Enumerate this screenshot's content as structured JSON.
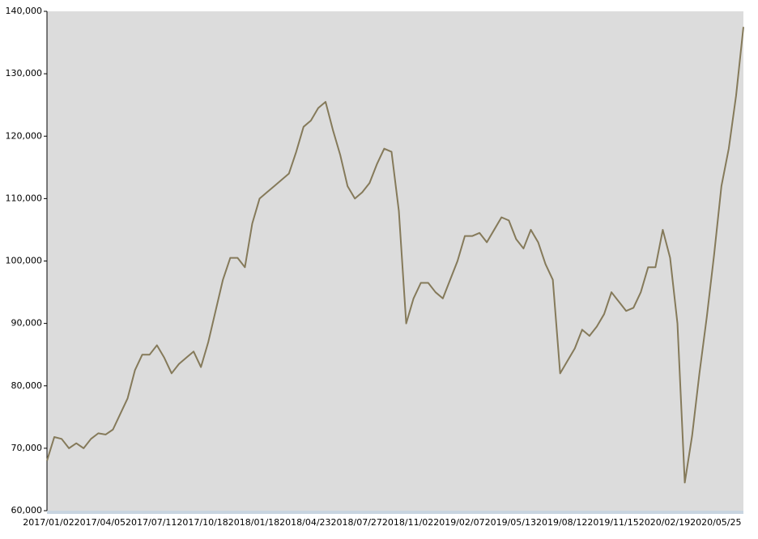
{
  "chart_data": {
    "type": "line",
    "categories": [
      "2017/01/02",
      null,
      null,
      null,
      null,
      null,
      null,
      "2017/04/05",
      null,
      null,
      null,
      null,
      null,
      null,
      "2017/07/11",
      null,
      null,
      null,
      null,
      null,
      null,
      "2017/10/18",
      null,
      null,
      null,
      null,
      null,
      null,
      "2018/01/18",
      null,
      null,
      null,
      null,
      null,
      null,
      "2018/04/23",
      null,
      null,
      null,
      null,
      null,
      null,
      "2018/07/27",
      null,
      null,
      null,
      null,
      null,
      null,
      "2018/11/02",
      null,
      null,
      null,
      null,
      null,
      null,
      "2019/02/07",
      null,
      null,
      null,
      null,
      null,
      null,
      "2019/05/13",
      null,
      null,
      null,
      null,
      null,
      null,
      "2019/08/12",
      null,
      null,
      null,
      null,
      null,
      null,
      "2019/11/15",
      null,
      null,
      null,
      null,
      null,
      null,
      "2020/02/19",
      null,
      null,
      null,
      null,
      null,
      null,
      "2020/05/25",
      null,
      null,
      null,
      null
    ],
    "values": [
      68000,
      71800,
      71500,
      70000,
      70800,
      70000,
      71500,
      72400,
      72200,
      73000,
      75500,
      78000,
      82500,
      85000,
      85000,
      86500,
      84500,
      82000,
      83500,
      84500,
      85500,
      83000,
      87000,
      92000,
      97000,
      100500,
      100500,
      99000,
      106000,
      110000,
      111000,
      112000,
      113000,
      114000,
      117500,
      121500,
      122500,
      124500,
      125500,
      121000,
      117000,
      112000,
      110000,
      111000,
      112500,
      115500,
      118000,
      117500,
      108000,
      90000,
      94000,
      96500,
      96500,
      95000,
      94000,
      97000,
      100000,
      104000,
      104000,
      104500,
      103000,
      105000,
      107000,
      106500,
      103500,
      102000,
      105000,
      103000,
      99500,
      97000,
      82000,
      84000,
      86000,
      89000,
      88000,
      89500,
      91500,
      95000,
      93500,
      92000,
      92500,
      95000,
      99000,
      99000,
      105000,
      100500,
      90000,
      64500,
      72000,
      82000,
      91000,
      101000,
      112000,
      118000,
      126500,
      137500
    ],
    "color": "#857a5a",
    "ylim": [
      60000,
      140000
    ],
    "yticks": [
      {
        "value": 60000,
        "label": "60,000"
      },
      {
        "value": 70000,
        "label": "70,000"
      },
      {
        "value": 80000,
        "label": "80,000"
      },
      {
        "value": 90000,
        "label": "90,000"
      },
      {
        "value": 100000,
        "label": "100,000"
      },
      {
        "value": 110000,
        "label": "110,000"
      },
      {
        "value": 120000,
        "label": "120,000"
      },
      {
        "value": 130000,
        "label": "130,000"
      },
      {
        "value": 140000,
        "label": "140,000"
      }
    ],
    "grid": false
  }
}
